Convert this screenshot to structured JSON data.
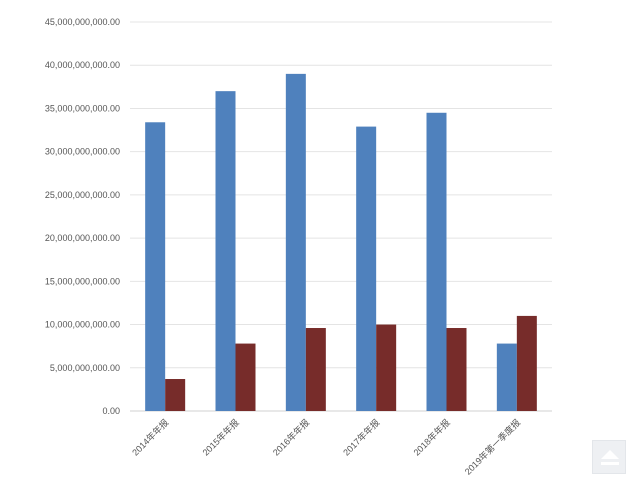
{
  "chart_data": {
    "type": "bar",
    "title": "",
    "xlabel": "",
    "ylabel": "",
    "ylim": [
      0,
      45000000000
    ],
    "ytick_step": 5000000000,
    "ytick_labels": [
      "0.00",
      "5,000,000,000.00",
      "10,000,000,000.00",
      "15,000,000,000.00",
      "20,000,000,000.00",
      "25,000,000,000.00",
      "30,000,000,000.00",
      "35,000,000,000.00",
      "40,000,000,000.00",
      "45,000,000,000.00"
    ],
    "grid": true,
    "legend": "none",
    "categories": [
      "2014年年报",
      "2015年年报",
      "2016年年报",
      "2017年年报",
      "2018年年报",
      "2019年第一季度报"
    ],
    "series": [
      {
        "name": "Series 1",
        "color": "#4f81bd",
        "values": [
          33400000000,
          37000000000,
          39000000000,
          32900000000,
          34500000000,
          7800000000
        ]
      },
      {
        "name": "Series 2",
        "color": "#772c2a",
        "values": [
          3700000000,
          7800000000,
          9600000000,
          10000000000,
          9600000000,
          11000000000
        ]
      }
    ]
  },
  "back_to_top": {
    "icon": "eject-up-icon"
  }
}
